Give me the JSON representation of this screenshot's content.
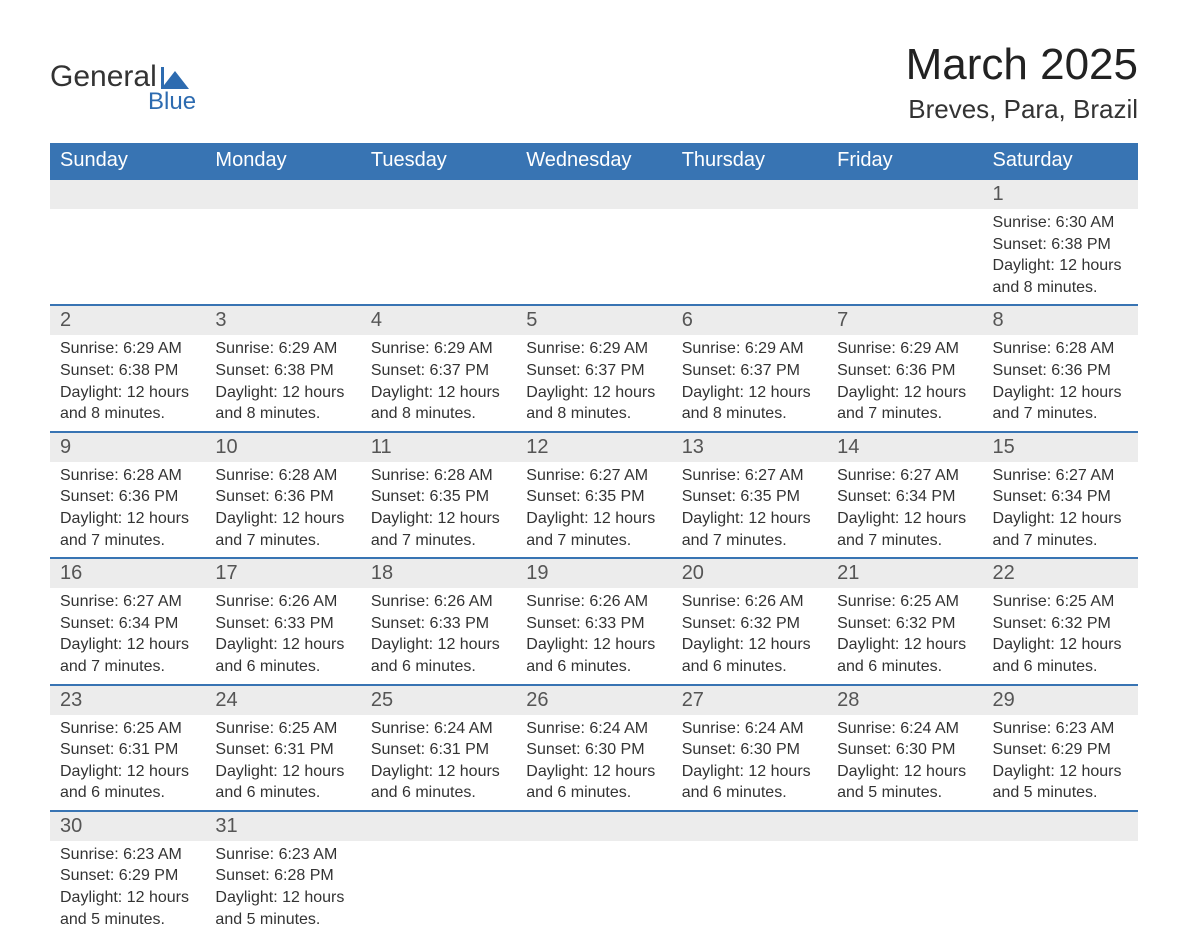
{
  "logo": {
    "text1": "General",
    "text2": "Blue",
    "icon_color": "#2d6bb0"
  },
  "title": "March 2025",
  "location": "Breves, Para, Brazil",
  "colors": {
    "header_bg": "#3874b3",
    "header_text": "#ffffff",
    "daynum_bg": "#ececec",
    "row_border": "#3874b3",
    "body_text": "#333333"
  },
  "day_headers": [
    "Sunday",
    "Monday",
    "Tuesday",
    "Wednesday",
    "Thursday",
    "Friday",
    "Saturday"
  ],
  "weeks": [
    [
      null,
      null,
      null,
      null,
      null,
      null,
      {
        "n": "1",
        "sr": "6:30 AM",
        "ss": "6:38 PM",
        "dl": "12 hours and 8 minutes."
      }
    ],
    [
      {
        "n": "2",
        "sr": "6:29 AM",
        "ss": "6:38 PM",
        "dl": "12 hours and 8 minutes."
      },
      {
        "n": "3",
        "sr": "6:29 AM",
        "ss": "6:38 PM",
        "dl": "12 hours and 8 minutes."
      },
      {
        "n": "4",
        "sr": "6:29 AM",
        "ss": "6:37 PM",
        "dl": "12 hours and 8 minutes."
      },
      {
        "n": "5",
        "sr": "6:29 AM",
        "ss": "6:37 PM",
        "dl": "12 hours and 8 minutes."
      },
      {
        "n": "6",
        "sr": "6:29 AM",
        "ss": "6:37 PM",
        "dl": "12 hours and 8 minutes."
      },
      {
        "n": "7",
        "sr": "6:29 AM",
        "ss": "6:36 PM",
        "dl": "12 hours and 7 minutes."
      },
      {
        "n": "8",
        "sr": "6:28 AM",
        "ss": "6:36 PM",
        "dl": "12 hours and 7 minutes."
      }
    ],
    [
      {
        "n": "9",
        "sr": "6:28 AM",
        "ss": "6:36 PM",
        "dl": "12 hours and 7 minutes."
      },
      {
        "n": "10",
        "sr": "6:28 AM",
        "ss": "6:36 PM",
        "dl": "12 hours and 7 minutes."
      },
      {
        "n": "11",
        "sr": "6:28 AM",
        "ss": "6:35 PM",
        "dl": "12 hours and 7 minutes."
      },
      {
        "n": "12",
        "sr": "6:27 AM",
        "ss": "6:35 PM",
        "dl": "12 hours and 7 minutes."
      },
      {
        "n": "13",
        "sr": "6:27 AM",
        "ss": "6:35 PM",
        "dl": "12 hours and 7 minutes."
      },
      {
        "n": "14",
        "sr": "6:27 AM",
        "ss": "6:34 PM",
        "dl": "12 hours and 7 minutes."
      },
      {
        "n": "15",
        "sr": "6:27 AM",
        "ss": "6:34 PM",
        "dl": "12 hours and 7 minutes."
      }
    ],
    [
      {
        "n": "16",
        "sr": "6:27 AM",
        "ss": "6:34 PM",
        "dl": "12 hours and 7 minutes."
      },
      {
        "n": "17",
        "sr": "6:26 AM",
        "ss": "6:33 PM",
        "dl": "12 hours and 6 minutes."
      },
      {
        "n": "18",
        "sr": "6:26 AM",
        "ss": "6:33 PM",
        "dl": "12 hours and 6 minutes."
      },
      {
        "n": "19",
        "sr": "6:26 AM",
        "ss": "6:33 PM",
        "dl": "12 hours and 6 minutes."
      },
      {
        "n": "20",
        "sr": "6:26 AM",
        "ss": "6:32 PM",
        "dl": "12 hours and 6 minutes."
      },
      {
        "n": "21",
        "sr": "6:25 AM",
        "ss": "6:32 PM",
        "dl": "12 hours and 6 minutes."
      },
      {
        "n": "22",
        "sr": "6:25 AM",
        "ss": "6:32 PM",
        "dl": "12 hours and 6 minutes."
      }
    ],
    [
      {
        "n": "23",
        "sr": "6:25 AM",
        "ss": "6:31 PM",
        "dl": "12 hours and 6 minutes."
      },
      {
        "n": "24",
        "sr": "6:25 AM",
        "ss": "6:31 PM",
        "dl": "12 hours and 6 minutes."
      },
      {
        "n": "25",
        "sr": "6:24 AM",
        "ss": "6:31 PM",
        "dl": "12 hours and 6 minutes."
      },
      {
        "n": "26",
        "sr": "6:24 AM",
        "ss": "6:30 PM",
        "dl": "12 hours and 6 minutes."
      },
      {
        "n": "27",
        "sr": "6:24 AM",
        "ss": "6:30 PM",
        "dl": "12 hours and 6 minutes."
      },
      {
        "n": "28",
        "sr": "6:24 AM",
        "ss": "6:30 PM",
        "dl": "12 hours and 5 minutes."
      },
      {
        "n": "29",
        "sr": "6:23 AM",
        "ss": "6:29 PM",
        "dl": "12 hours and 5 minutes."
      }
    ],
    [
      {
        "n": "30",
        "sr": "6:23 AM",
        "ss": "6:29 PM",
        "dl": "12 hours and 5 minutes."
      },
      {
        "n": "31",
        "sr": "6:23 AM",
        "ss": "6:28 PM",
        "dl": "12 hours and 5 minutes."
      },
      null,
      null,
      null,
      null,
      null
    ]
  ],
  "labels": {
    "sunrise": "Sunrise: ",
    "sunset": "Sunset: ",
    "daylight": "Daylight: "
  }
}
